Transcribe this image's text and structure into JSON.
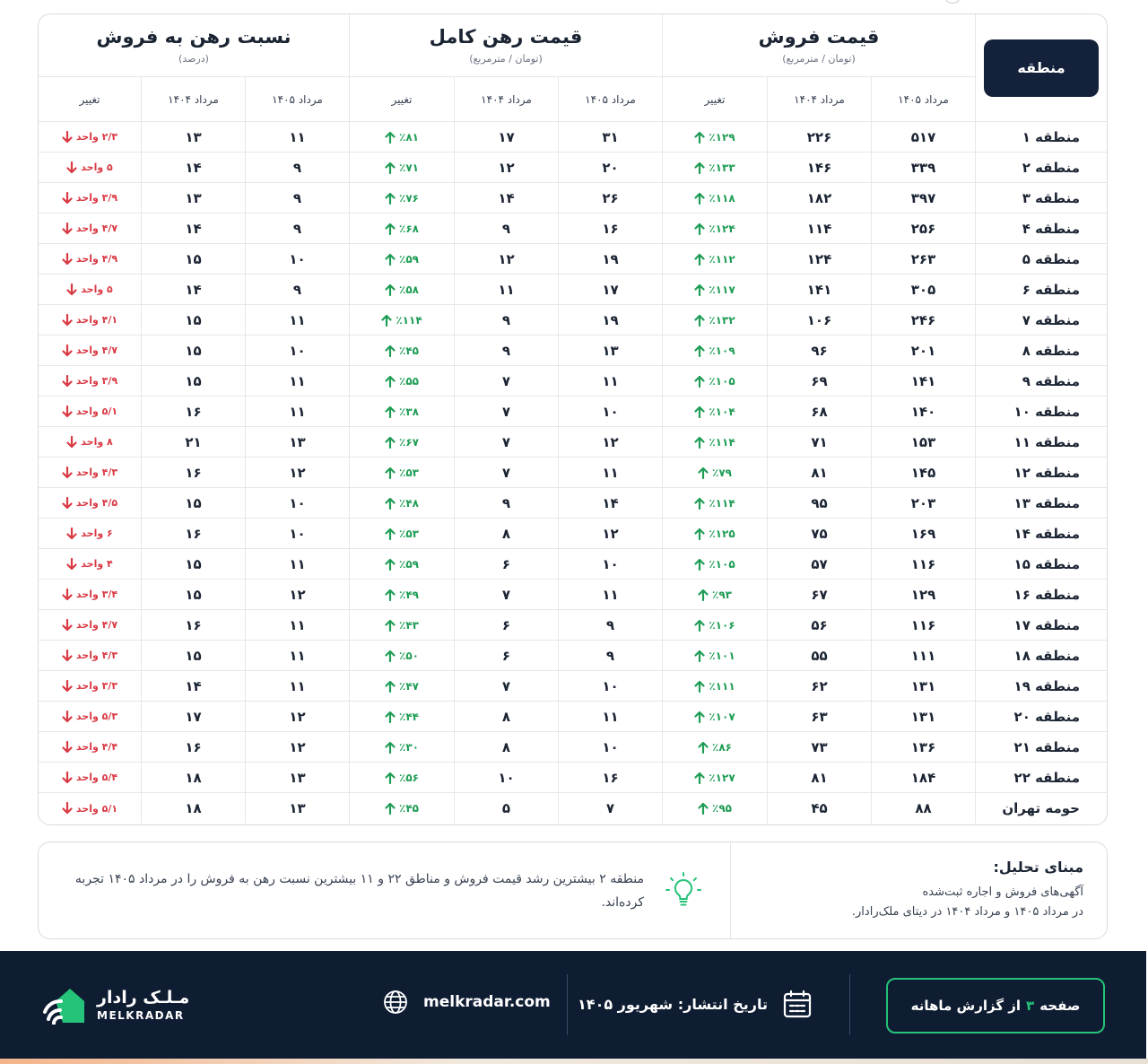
{
  "colors": {
    "navy": "#14213a",
    "footer": "#0f1d33",
    "up": "#1f9d55",
    "down": "#d93a44",
    "accent": "#25c279"
  },
  "header": {
    "region_label": "منطقه",
    "groups": [
      {
        "title": "قیمت فروش",
        "subtitle": "(تومان / مترمربع)"
      },
      {
        "title": "قیمت رهن کامل",
        "subtitle": "(تومان / مترمربع)"
      },
      {
        "title": "نسبت رهن به فروش",
        "subtitle": "(درصد)"
      }
    ],
    "sub": [
      "مرداد ۱۴۰۵",
      "مرداد ۱۴۰۴",
      "تغییر"
    ]
  },
  "rows": [
    {
      "region": "منطقه ۱",
      "s05": "۵۱۷",
      "s04": "۲۲۶",
      "sc": "٪۱۲۹",
      "m05": "۳۱",
      "m04": "۱۷",
      "mc": "٪۸۱",
      "r05": "۱۱",
      "r04": "۱۳",
      "rc": "۲/۳ واحد"
    },
    {
      "region": "منطقه ۲",
      "s05": "۳۳۹",
      "s04": "۱۴۶",
      "sc": "٪۱۳۳",
      "m05": "۲۰",
      "m04": "۱۲",
      "mc": "٪۷۱",
      "r05": "۹",
      "r04": "۱۴",
      "rc": "۵ واحد"
    },
    {
      "region": "منطقه ۳",
      "s05": "۳۹۷",
      "s04": "۱۸۲",
      "sc": "٪۱۱۸",
      "m05": "۲۶",
      "m04": "۱۴",
      "mc": "٪۷۶",
      "r05": "۹",
      "r04": "۱۳",
      "rc": "۳/۹ واحد"
    },
    {
      "region": "منطقه ۴",
      "s05": "۲۵۶",
      "s04": "۱۱۴",
      "sc": "٪۱۲۴",
      "m05": "۱۶",
      "m04": "۹",
      "mc": "٪۶۸",
      "r05": "۹",
      "r04": "۱۴",
      "rc": "۴/۷ واحد"
    },
    {
      "region": "منطقه ۵",
      "s05": "۲۶۳",
      "s04": "۱۲۴",
      "sc": "٪۱۱۲",
      "m05": "۱۹",
      "m04": "۱۲",
      "mc": "٪۵۹",
      "r05": "۱۰",
      "r04": "۱۵",
      "rc": "۴/۹ واحد"
    },
    {
      "region": "منطقه ۶",
      "s05": "۳۰۵",
      "s04": "۱۴۱",
      "sc": "٪۱۱۷",
      "m05": "۱۷",
      "m04": "۱۱",
      "mc": "٪۵۸",
      "r05": "۹",
      "r04": "۱۴",
      "rc": "۵ واحد"
    },
    {
      "region": "منطقه ۷",
      "s05": "۲۴۶",
      "s04": "۱۰۶",
      "sc": "٪۱۳۲",
      "m05": "۱۹",
      "m04": "۹",
      "mc": "٪۱۱۴",
      "r05": "۱۱",
      "r04": "۱۵",
      "rc": "۴/۱ واحد"
    },
    {
      "region": "منطقه ۸",
      "s05": "۲۰۱",
      "s04": "۹۶",
      "sc": "٪۱۰۹",
      "m05": "۱۳",
      "m04": "۹",
      "mc": "٪۴۵",
      "r05": "۱۰",
      "r04": "۱۵",
      "rc": "۴/۷ واحد"
    },
    {
      "region": "منطقه ۹",
      "s05": "۱۴۱",
      "s04": "۶۹",
      "sc": "٪۱۰۵",
      "m05": "۱۱",
      "m04": "۷",
      "mc": "٪۵۵",
      "r05": "۱۱",
      "r04": "۱۵",
      "rc": "۳/۹ واحد"
    },
    {
      "region": "منطقه ۱۰",
      "s05": "۱۴۰",
      "s04": "۶۸",
      "sc": "٪۱۰۴",
      "m05": "۱۰",
      "m04": "۷",
      "mc": "٪۳۸",
      "r05": "۱۱",
      "r04": "۱۶",
      "rc": "۵/۱ واحد"
    },
    {
      "region": "منطقه ۱۱",
      "s05": "۱۵۳",
      "s04": "۷۱",
      "sc": "٪۱۱۴",
      "m05": "۱۲",
      "m04": "۷",
      "mc": "٪۶۷",
      "r05": "۱۳",
      "r04": "۲۱",
      "rc": "۸ واحد"
    },
    {
      "region": "منطقه ۱۲",
      "s05": "۱۴۵",
      "s04": "۸۱",
      "sc": "٪۷۹",
      "m05": "۱۱",
      "m04": "۷",
      "mc": "٪۵۳",
      "r05": "۱۲",
      "r04": "۱۶",
      "rc": "۴/۳ واحد"
    },
    {
      "region": "منطقه ۱۳",
      "s05": "۲۰۳",
      "s04": "۹۵",
      "sc": "٪۱۱۴",
      "m05": "۱۴",
      "m04": "۹",
      "mc": "٪۴۸",
      "r05": "۱۰",
      "r04": "۱۵",
      "rc": "۴/۵ واحد"
    },
    {
      "region": "منطقه ۱۴",
      "s05": "۱۶۹",
      "s04": "۷۵",
      "sc": "٪۱۲۵",
      "m05": "۱۲",
      "m04": "۸",
      "mc": "٪۵۳",
      "r05": "۱۰",
      "r04": "۱۶",
      "rc": "۶ واحد"
    },
    {
      "region": "منطقه ۱۵",
      "s05": "۱۱۶",
      "s04": "۵۷",
      "sc": "٪۱۰۵",
      "m05": "۱۰",
      "m04": "۶",
      "mc": "٪۵۹",
      "r05": "۱۱",
      "r04": "۱۵",
      "rc": "۴ واحد"
    },
    {
      "region": "منطقه ۱۶",
      "s05": "۱۲۹",
      "s04": "۶۷",
      "sc": "٪۹۳",
      "m05": "۱۱",
      "m04": "۷",
      "mc": "٪۴۹",
      "r05": "۱۲",
      "r04": "۱۵",
      "rc": "۳/۴ واحد"
    },
    {
      "region": "منطقه ۱۷",
      "s05": "۱۱۶",
      "s04": "۵۶",
      "sc": "٪۱۰۶",
      "m05": "۹",
      "m04": "۶",
      "mc": "٪۴۳",
      "r05": "۱۱",
      "r04": "۱۶",
      "rc": "۴/۷ واحد"
    },
    {
      "region": "منطقه ۱۸",
      "s05": "۱۱۱",
      "s04": "۵۵",
      "sc": "٪۱۰۱",
      "m05": "۹",
      "m04": "۶",
      "mc": "٪۵۰",
      "r05": "۱۱",
      "r04": "۱۵",
      "rc": "۴/۳ واحد"
    },
    {
      "region": "منطقه ۱۹",
      "s05": "۱۳۱",
      "s04": "۶۲",
      "sc": "٪۱۱۱",
      "m05": "۱۰",
      "m04": "۷",
      "mc": "٪۴۷",
      "r05": "۱۱",
      "r04": "۱۴",
      "rc": "۳/۳ واحد"
    },
    {
      "region": "منطقه ۲۰",
      "s05": "۱۳۱",
      "s04": "۶۳",
      "sc": "٪۱۰۷",
      "m05": "۱۱",
      "m04": "۸",
      "mc": "٪۴۴",
      "r05": "۱۲",
      "r04": "۱۷",
      "rc": "۵/۳ واحد"
    },
    {
      "region": "منطقه ۲۱",
      "s05": "۱۳۶",
      "s04": "۷۳",
      "sc": "٪۸۶",
      "m05": "۱۰",
      "m04": "۸",
      "mc": "٪۳۰",
      "r05": "۱۲",
      "r04": "۱۶",
      "rc": "۴/۴ واحد"
    },
    {
      "region": "منطقه ۲۲",
      "s05": "۱۸۴",
      "s04": "۸۱",
      "sc": "٪۱۲۷",
      "m05": "۱۶",
      "m04": "۱۰",
      "mc": "٪۵۶",
      "r05": "۱۳",
      "r04": "۱۸",
      "rc": "۵/۴ واحد"
    },
    {
      "region": "حومه تهران",
      "s05": "۸۸",
      "s04": "۴۵",
      "sc": "٪۹۵",
      "m05": "۷",
      "m04": "۵",
      "mc": "٪۴۵",
      "r05": "۱۳",
      "r04": "۱۸",
      "rc": "۵/۱ واحد"
    }
  ],
  "analysis": {
    "title": "مبنای تحلیل:",
    "line1": "آگهی‌های فروش و اجاره ثبت‌شده",
    "line2": "در مرداد ۱۴۰۵ و مرداد ۱۴۰۴ در دیتای ملک‌رادار.",
    "insight": "منطقه ۲ بیشترین رشد قیمت فروش و مناطق ۲۲ و ۱۱ بیشترین نسبت رهن به فروش را در مرداد ۱۴۰۵ تجربه کرده‌اند."
  },
  "footer": {
    "page_prefix": "صفحه",
    "page_number": "۳",
    "page_suffix": "از گزارش ماهانه",
    "publish": "تاریخ انتشار: شهریور ۱۴۰۵",
    "website": "melkradar.com",
    "brand_fa": "مـلـک رادار",
    "brand_en": "MELKRADAR"
  },
  "icons": [
    "lightbulb-icon",
    "calendar-icon",
    "globe-icon",
    "melkradar-logo-icon",
    "arrow-up-icon",
    "arrow-down-icon"
  ]
}
